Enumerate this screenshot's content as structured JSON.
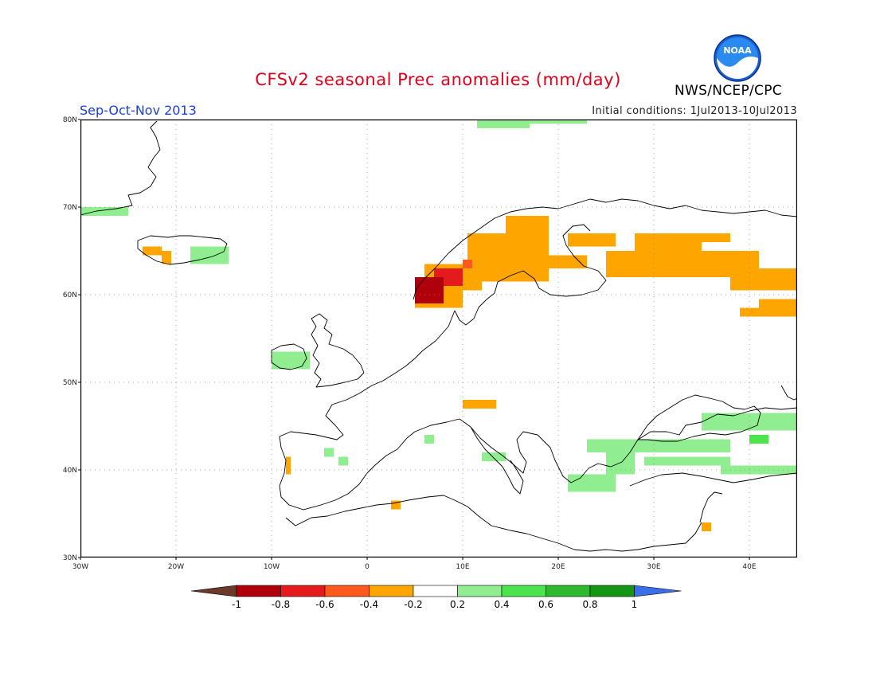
{
  "title": "CFSv2 seasonal Prec anomalies (mm/day)",
  "season": "Sep-Oct-Nov 2013",
  "initial_conditions": "Initial conditions: 1Jul2013-10Jul2013",
  "organization": "NWS/NCEP/CPC",
  "logo_text": "NOAA",
  "map": {
    "lon_range": [
      -30,
      45
    ],
    "lat_range": [
      30,
      80
    ],
    "lat_labels": [
      "30N",
      "40N",
      "50N",
      "60N",
      "70N",
      "80N"
    ],
    "lon_labels": [
      "30W",
      "20W",
      "10W",
      "0",
      "10E",
      "20E",
      "30E",
      "40E"
    ],
    "gridlines": true
  },
  "colorbar": {
    "labels": [
      "-1",
      "-0.8",
      "-0.6",
      "-0.4",
      "-0.2",
      "0.2",
      "0.4",
      "0.6",
      "0.8",
      "1"
    ],
    "colors": [
      "#6b3a2a",
      "#b0000b",
      "#e41a1c",
      "#ff5a1c",
      "#ffa500",
      "#ffffff",
      "#90ee90",
      "#4ce44c",
      "#2db92d",
      "#149614",
      "#3a6fe8"
    ]
  },
  "anomaly_regions": [
    {
      "level": "-0.4",
      "color": "#ffa500",
      "lon": [
        -23.5,
        -21.5
      ],
      "lat": [
        64.5,
        65.5
      ]
    },
    {
      "level": "-0.4",
      "color": "#ffa500",
      "lon": [
        -21.5,
        -20.5
      ],
      "lat": [
        63.5,
        65
      ]
    },
    {
      "level": "-0.4",
      "color": "#ffa500",
      "lon": [
        10.5,
        19
      ],
      "lat": [
        63,
        67
      ]
    },
    {
      "level": "-0.4",
      "color": "#ffa500",
      "lon": [
        14.5,
        19
      ],
      "lat": [
        67,
        69
      ]
    },
    {
      "level": "-0.4",
      "color": "#ffa500",
      "lon": [
        6,
        12
      ],
      "lat": [
        60.5,
        63.5
      ]
    },
    {
      "level": "-0.4",
      "color": "#ffa500",
      "lon": [
        5,
        10
      ],
      "lat": [
        58.5,
        60.5
      ]
    },
    {
      "level": "-0.4",
      "color": "#ffa500",
      "lon": [
        12,
        19
      ],
      "lat": [
        61.5,
        63
      ]
    },
    {
      "level": "-0.4",
      "color": "#ffa500",
      "lon": [
        19,
        23
      ],
      "lat": [
        63,
        64.5
      ]
    },
    {
      "level": "-0.4",
      "color": "#ffa500",
      "lon": [
        21,
        26
      ],
      "lat": [
        65.5,
        67
      ]
    },
    {
      "level": "-0.4",
      "color": "#ffa500",
      "lon": [
        25,
        41
      ],
      "lat": [
        62,
        65
      ]
    },
    {
      "level": "-0.4",
      "color": "#ffa500",
      "lon": [
        28,
        35
      ],
      "lat": [
        65,
        67
      ]
    },
    {
      "level": "-0.4",
      "color": "#ffa500",
      "lon": [
        35,
        38
      ],
      "lat": [
        66,
        67
      ]
    },
    {
      "level": "-0.4",
      "color": "#ffa500",
      "lon": [
        38,
        45
      ],
      "lat": [
        60.5,
        63
      ]
    },
    {
      "level": "-0.4",
      "color": "#ffa500",
      "lon": [
        41,
        45
      ],
      "lat": [
        57.5,
        59.5
      ]
    },
    {
      "level": "-0.4",
      "color": "#ffa500",
      "lon": [
        39,
        41
      ],
      "lat": [
        57.5,
        58.5
      ]
    },
    {
      "level": "-0.4",
      "color": "#ffa500",
      "lon": [
        10,
        13.5
      ],
      "lat": [
        47,
        48
      ]
    },
    {
      "level": "-0.4",
      "color": "#ffa500",
      "lon": [
        -8.5,
        -8
      ],
      "lat": [
        39.5,
        41.5
      ]
    },
    {
      "level": "-0.4",
      "color": "#ffa500",
      "lon": [
        2.5,
        3.5
      ],
      "lat": [
        35.5,
        36.5
      ]
    },
    {
      "level": "-0.4",
      "color": "#ffa500",
      "lon": [
        35,
        36
      ],
      "lat": [
        33,
        34
      ]
    },
    {
      "level": "-0.6",
      "color": "#ff5a1c",
      "lon": [
        10,
        11
      ],
      "lat": [
        63,
        64
      ]
    },
    {
      "level": "-0.8",
      "color": "#e41a1c",
      "lon": [
        7,
        10
      ],
      "lat": [
        61,
        63
      ]
    },
    {
      "level": "-1",
      "color": "#b0000b",
      "lon": [
        5,
        8
      ],
      "lat": [
        59,
        62
      ]
    },
    {
      "level": "0.2",
      "color": "#90ee90",
      "lon": [
        -30,
        -25
      ],
      "lat": [
        69,
        70
      ]
    },
    {
      "level": "0.2",
      "color": "#90ee90",
      "lon": [
        -18.5,
        -14.5
      ],
      "lat": [
        63.5,
        65.5
      ]
    },
    {
      "level": "0.2",
      "color": "#90ee90",
      "lon": [
        -10,
        -6
      ],
      "lat": [
        51.5,
        53.5
      ]
    },
    {
      "level": "0.2",
      "color": "#90ee90",
      "lon": [
        11.5,
        17
      ],
      "lat": [
        79,
        80
      ]
    },
    {
      "level": "0.2",
      "color": "#90ee90",
      "lon": [
        17,
        23
      ],
      "lat": [
        79.5,
        80
      ]
    },
    {
      "level": "0.2",
      "color": "#90ee90",
      "lon": [
        23,
        38
      ],
      "lat": [
        42,
        43.5
      ]
    },
    {
      "level": "0.2",
      "color": "#90ee90",
      "lon": [
        25,
        28
      ],
      "lat": [
        39.5,
        42
      ]
    },
    {
      "level": "0.2",
      "color": "#90ee90",
      "lon": [
        21,
        26
      ],
      "lat": [
        37.5,
        39.5
      ]
    },
    {
      "level": "0.2",
      "color": "#90ee90",
      "lon": [
        29,
        38
      ],
      "lat": [
        40.5,
        41.5
      ]
    },
    {
      "level": "0.2",
      "color": "#90ee90",
      "lon": [
        35,
        45
      ],
      "lat": [
        44.5,
        46.5
      ]
    },
    {
      "level": "0.2",
      "color": "#90ee90",
      "lon": [
        37,
        45
      ],
      "lat": [
        39.5,
        40.5
      ]
    },
    {
      "level": "0.2",
      "color": "#90ee90",
      "lon": [
        12,
        14.5
      ],
      "lat": [
        41,
        42
      ]
    },
    {
      "level": "0.2",
      "color": "#90ee90",
      "lon": [
        -3,
        -2
      ],
      "lat": [
        40.5,
        41.5
      ]
    },
    {
      "level": "0.2",
      "color": "#90ee90",
      "lon": [
        -4.5,
        -3.5
      ],
      "lat": [
        41.5,
        42.5
      ]
    },
    {
      "level": "0.2",
      "color": "#90ee90",
      "lon": [
        6,
        7
      ],
      "lat": [
        43,
        44
      ]
    },
    {
      "level": "0.4",
      "color": "#4ce44c",
      "lon": [
        40,
        42
      ],
      "lat": [
        43,
        44
      ]
    }
  ]
}
